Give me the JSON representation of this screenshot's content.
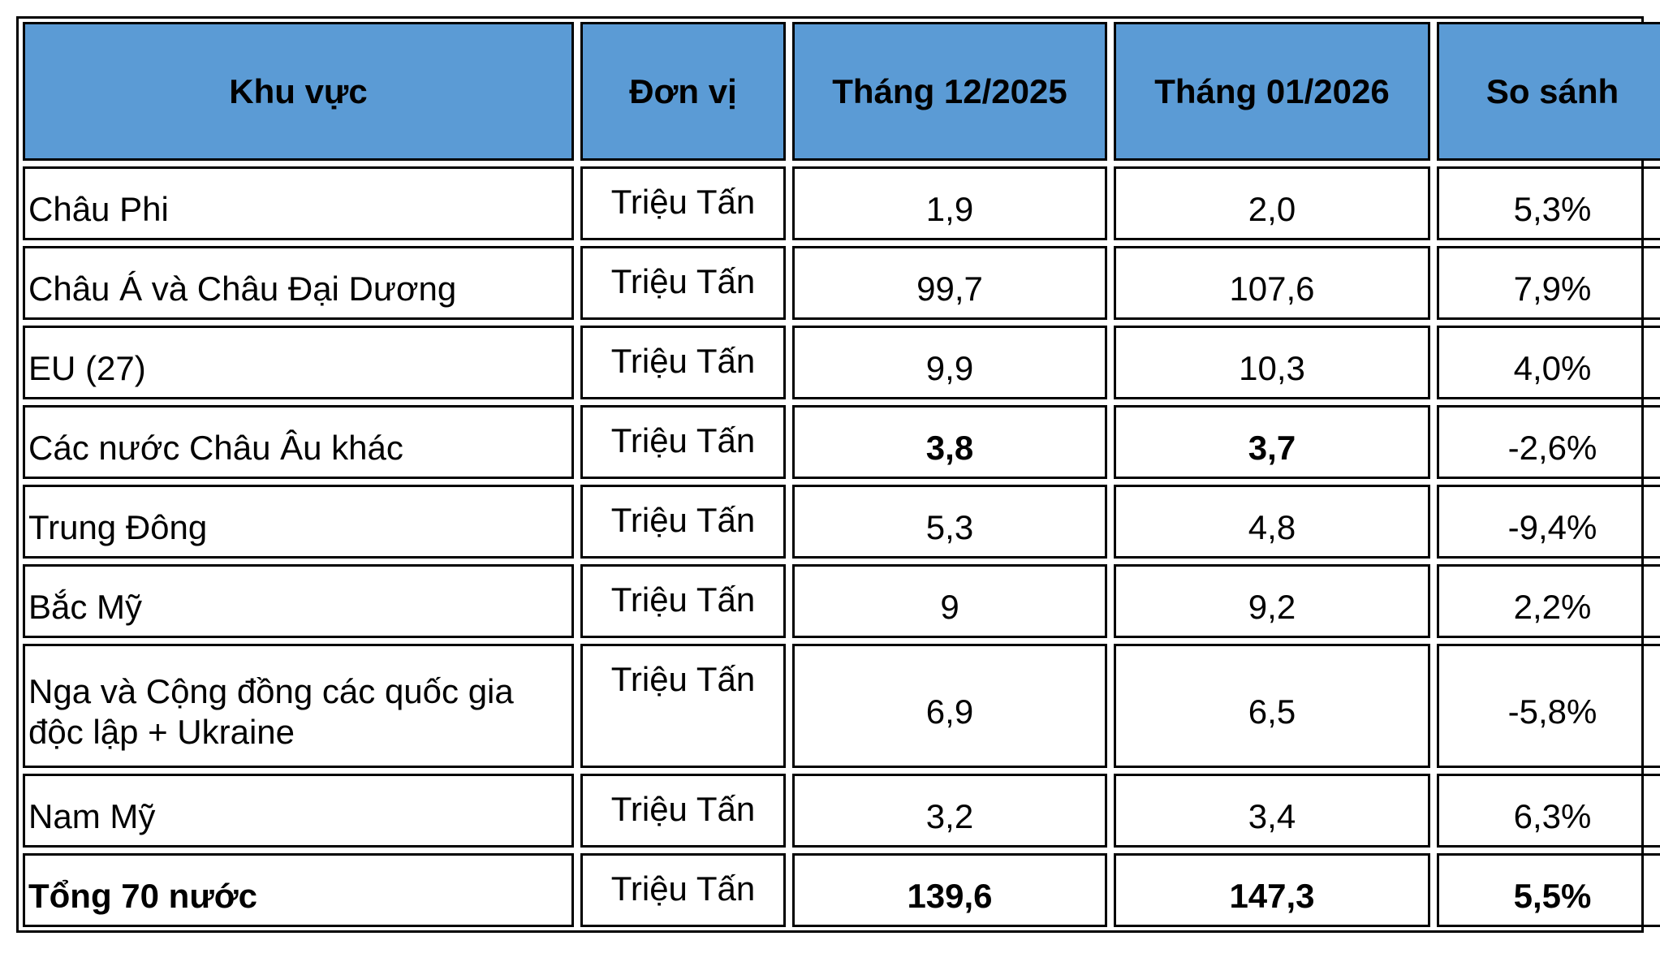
{
  "table": {
    "headers": [
      "Khu vực",
      "Đơn vị",
      "Tháng 12/2025",
      "Tháng 01/2026",
      "So sánh"
    ],
    "header_color": "#5b9bd5",
    "rows": [
      {
        "region": "Châu Phi",
        "unit": "Triệu Tấn",
        "dec_2025": "1,9",
        "jan_2026": "2,0",
        "change": "5,3%"
      },
      {
        "region": "Châu Á và Châu Đại Dương",
        "unit": "Triệu Tấn",
        "dec_2025": "99,7",
        "jan_2026": "107,6",
        "change": "7,9%"
      },
      {
        "region": "EU (27)",
        "unit": "Triệu Tấn",
        "dec_2025": "9,9",
        "jan_2026": "10,3",
        "change": "4,0%"
      },
      {
        "region": "Các nước Châu Âu khác",
        "unit": "Triệu Tấn",
        "dec_2025": "3,8",
        "jan_2026": "3,7",
        "change": "-2,6%"
      },
      {
        "region": "Trung Đông",
        "unit": "Triệu Tấn",
        "dec_2025": "5,3",
        "jan_2026": "4,8",
        "change": "-9,4%"
      },
      {
        "region": "Bắc Mỹ",
        "unit": "Triệu Tấn",
        "dec_2025": "9",
        "jan_2026": "9,2",
        "change": "2,2%"
      },
      {
        "region": "Nga và Cộng đồng các quốc gia độc lập + Ukraine",
        "unit": "Triệu Tấn",
        "dec_2025": "6,9",
        "jan_2026": "6,5",
        "change": "-5,8%"
      },
      {
        "region": "Nam Mỹ",
        "unit": "Triệu Tấn",
        "dec_2025": "3,2",
        "jan_2026": "3,4",
        "change": "6,3%"
      },
      {
        "region": "Tổng 70 nước",
        "unit": "Triệu Tấn",
        "dec_2025": "139,6",
        "jan_2026": "147,3",
        "change": "5,5%"
      }
    ]
  }
}
